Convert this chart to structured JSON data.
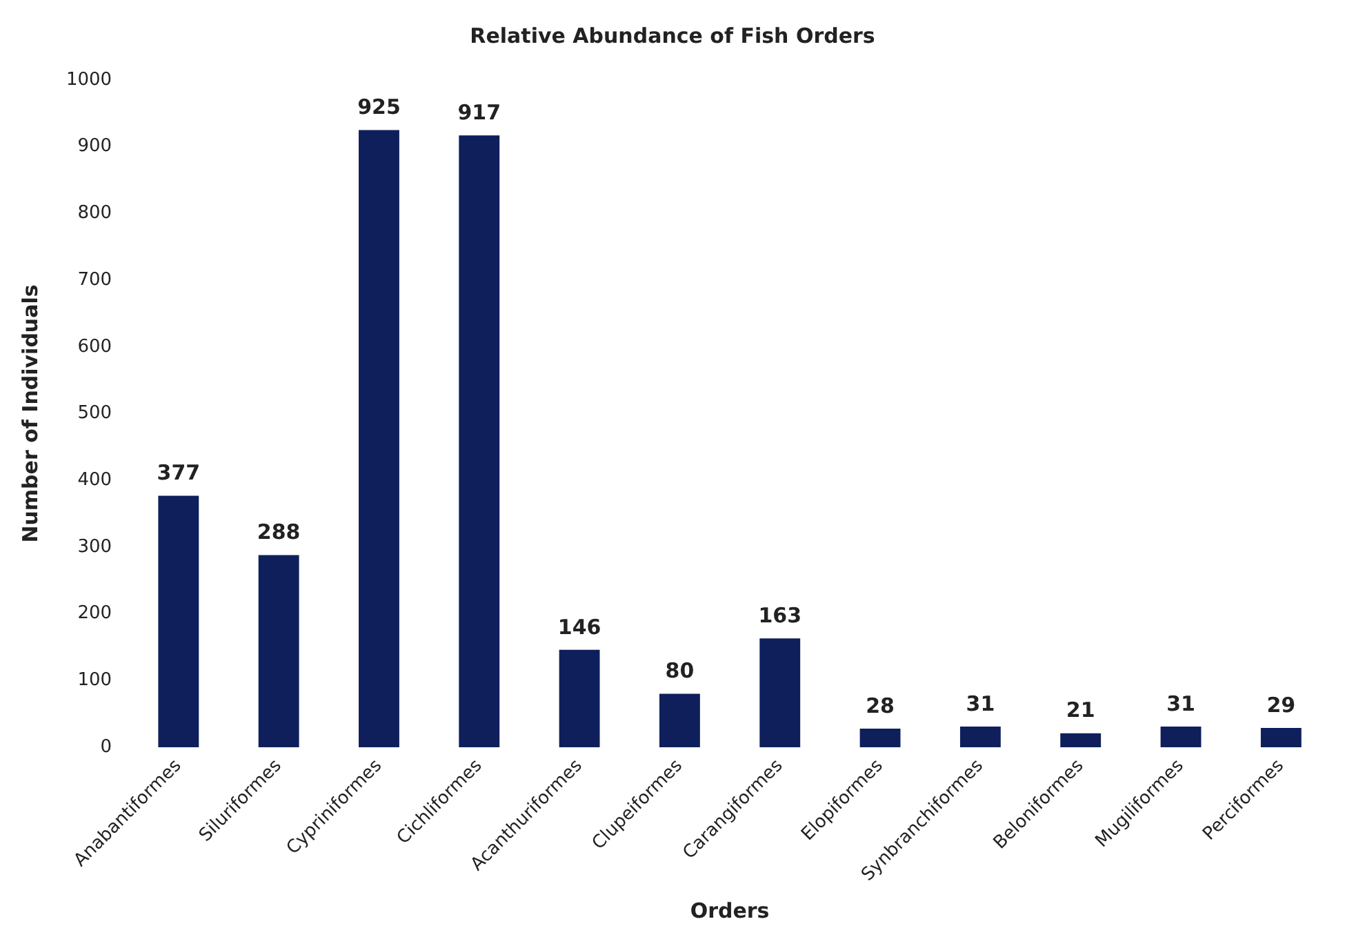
{
  "chart_data": {
    "type": "bar",
    "title": "Relative Abundance of Fish Orders",
    "xlabel": "Orders",
    "ylabel": "Number of Individuals",
    "categories": [
      "Anabantiformes",
      "Siluriformes",
      "Cypriniformes",
      "Cichliformes",
      "Acanthuriformes",
      "Clupeiformes",
      "Carangiformes",
      "Elopiformes",
      "Synbranchiformes",
      "Beloniformes",
      "Mugiliformes",
      "Perciformes"
    ],
    "values": [
      377,
      288,
      925,
      917,
      146,
      80,
      163,
      28,
      31,
      21,
      31,
      29
    ],
    "color": "#0f1f5c",
    "ylim": [
      0,
      1000
    ],
    "yticks": [
      0,
      100,
      200,
      300,
      400,
      500,
      600,
      700,
      800,
      900,
      1000
    ],
    "grid": false,
    "legend": false,
    "data_labels": true
  }
}
